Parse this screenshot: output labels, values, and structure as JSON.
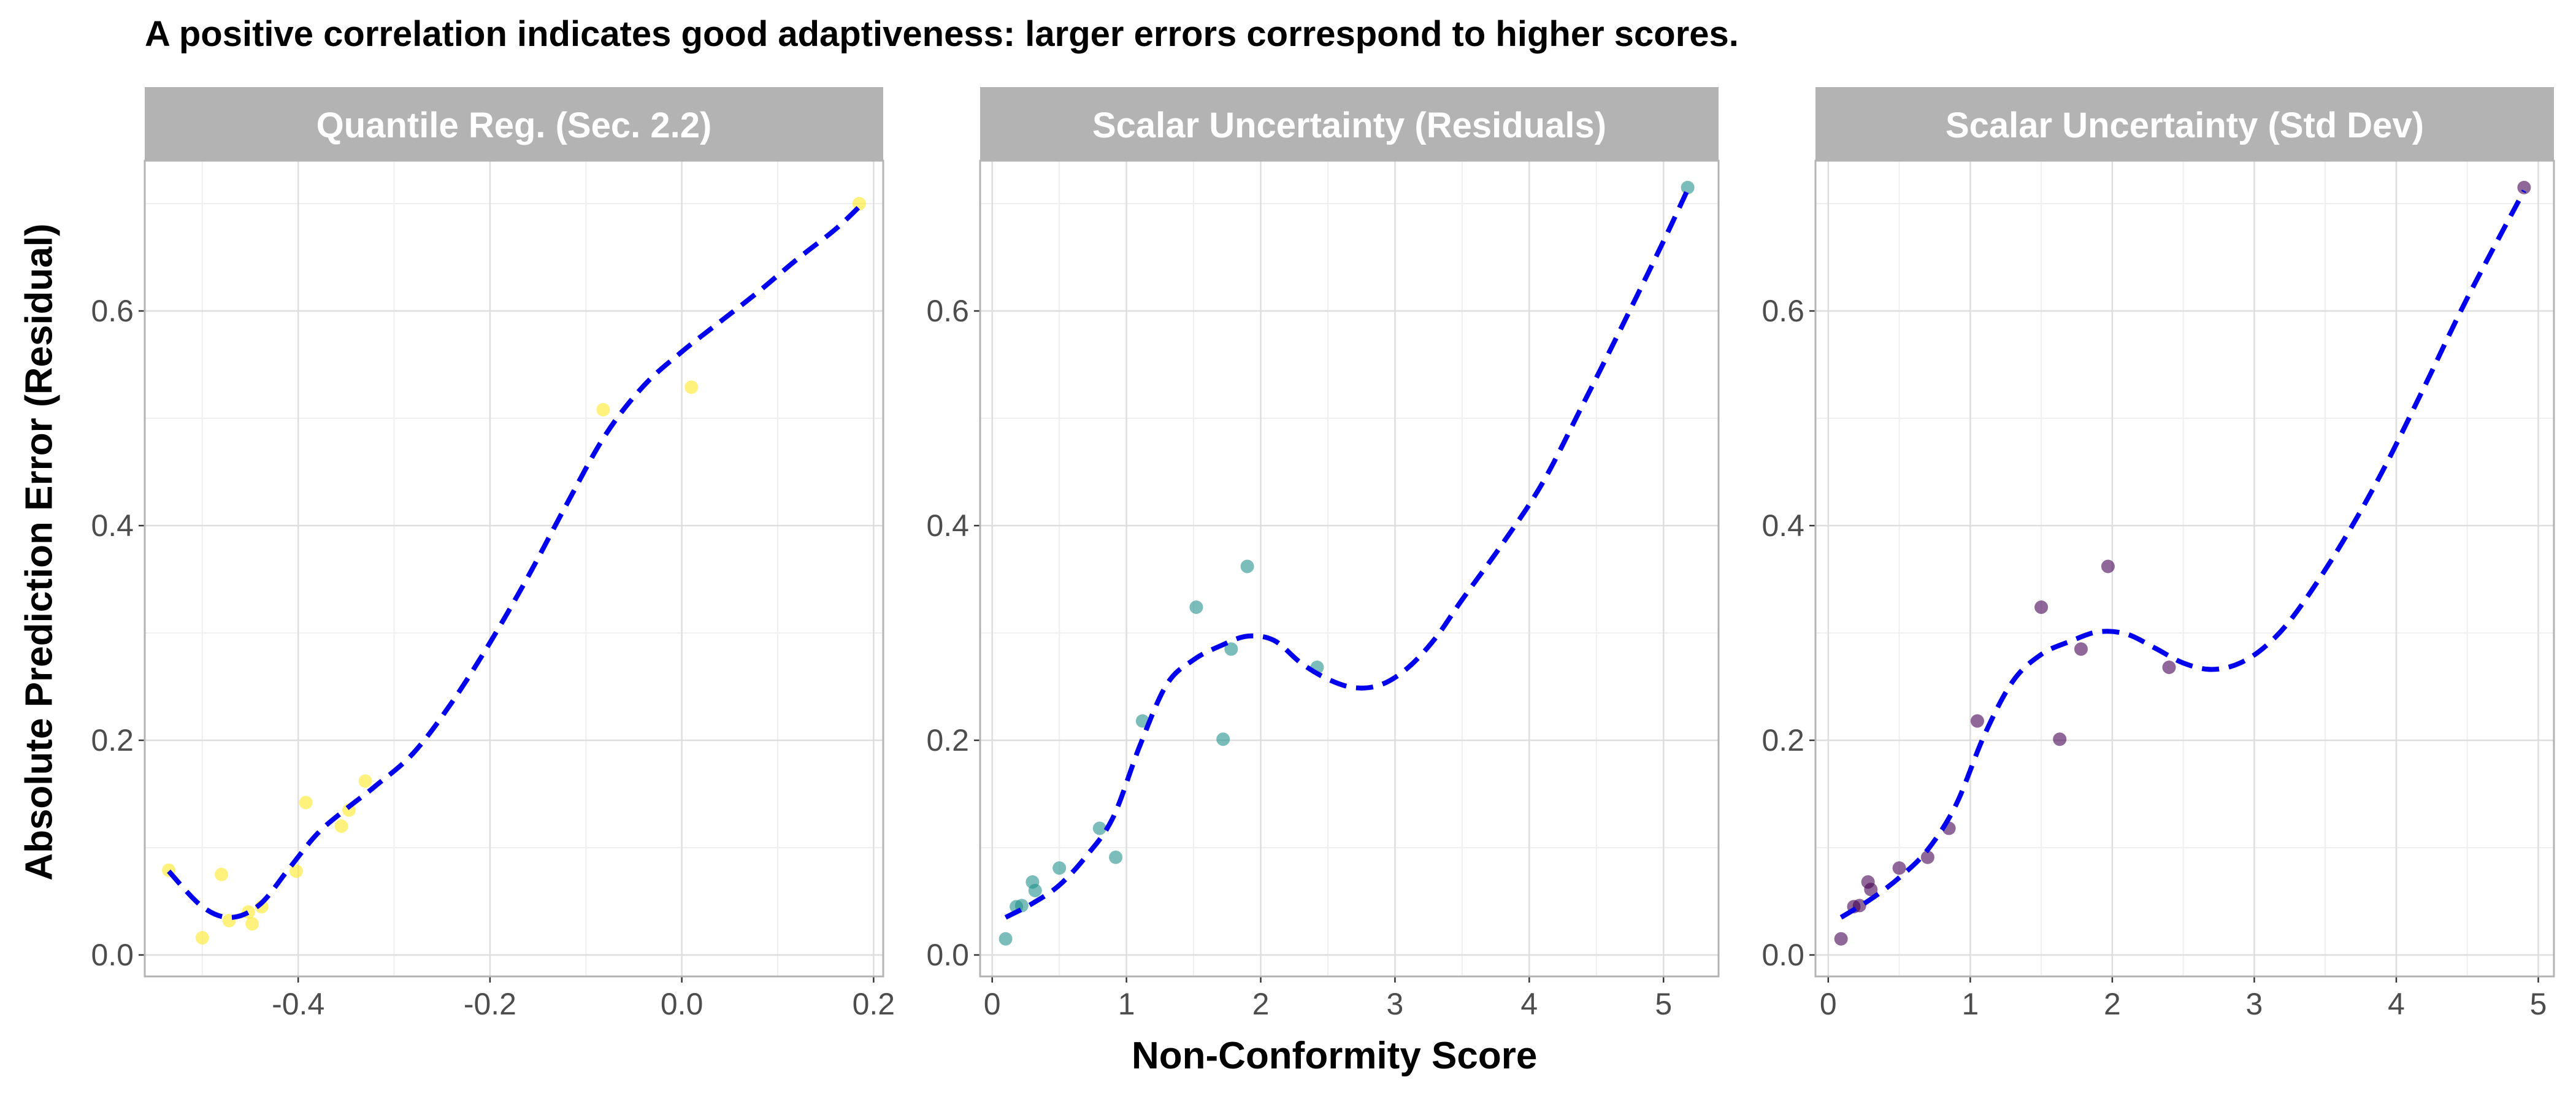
{
  "figure": {
    "title": "A positive correlation indicates good adaptiveness: larger errors correspond to higher scores.",
    "xlabel": "Non-Conformity Score",
    "ylabel": "Absolute Prediction Error (Residual)",
    "colors": {
      "strip_bg": "#b3b3b3",
      "strip_text": "#ffffff",
      "grid_major": "#dedede",
      "grid_minor": "#efefef",
      "panel_border": "#b3b3b3",
      "fit_line": "#0000ee",
      "tick_text": "#4d4d4d"
    }
  },
  "chart_data": [
    {
      "type": "scatter",
      "facet": "Quantile Reg. (Sec. 2.2)",
      "point_color": "#fde725",
      "xlim": [
        -0.56,
        0.21
      ],
      "ylim": [
        -0.02,
        0.74
      ],
      "x_ticks": [
        -0.4,
        -0.2,
        0.0,
        0.2
      ],
      "x_tick_labels": [
        "-0.4",
        "-0.2",
        "0.0",
        "0.2"
      ],
      "y_ticks": [
        0.0,
        0.2,
        0.4,
        0.6
      ],
      "y_tick_labels": [
        "0.0",
        "0.2",
        "0.4",
        "0.6"
      ],
      "points": [
        [
          -0.535,
          0.079
        ],
        [
          -0.5,
          0.016
        ],
        [
          -0.48,
          0.075
        ],
        [
          -0.472,
          0.032
        ],
        [
          -0.452,
          0.04
        ],
        [
          -0.448,
          0.029
        ],
        [
          -0.438,
          0.045
        ],
        [
          -0.402,
          0.078
        ],
        [
          -0.392,
          0.142
        ],
        [
          -0.355,
          0.12
        ],
        [
          -0.347,
          0.135
        ],
        [
          -0.33,
          0.162
        ],
        [
          -0.082,
          0.508
        ],
        [
          0.01,
          0.529
        ],
        [
          0.185,
          0.7
        ]
      ],
      "smooth": [
        [
          -0.535,
          0.078
        ],
        [
          -0.5,
          0.045
        ],
        [
          -0.47,
          0.035
        ],
        [
          -0.44,
          0.047
        ],
        [
          -0.41,
          0.08
        ],
        [
          -0.38,
          0.113
        ],
        [
          -0.35,
          0.136
        ],
        [
          -0.32,
          0.157
        ],
        [
          -0.28,
          0.188
        ],
        [
          -0.24,
          0.235
        ],
        [
          -0.2,
          0.291
        ],
        [
          -0.16,
          0.353
        ],
        [
          -0.12,
          0.42
        ],
        [
          -0.08,
          0.484
        ],
        [
          -0.04,
          0.53
        ],
        [
          0.0,
          0.562
        ],
        [
          0.04,
          0.59
        ],
        [
          0.08,
          0.618
        ],
        [
          0.12,
          0.648
        ],
        [
          0.16,
          0.676
        ],
        [
          0.185,
          0.697
        ]
      ]
    },
    {
      "type": "scatter",
      "facet": "Scalar Uncertainty (Residuals)",
      "point_color": "#21918c",
      "xlim": [
        -0.09,
        5.41
      ],
      "ylim": [
        -0.02,
        0.74
      ],
      "x_ticks": [
        0,
        1,
        2,
        3,
        4,
        5
      ],
      "x_tick_labels": [
        "0",
        "1",
        "2",
        "3",
        "4",
        "5"
      ],
      "y_ticks": [
        0.0,
        0.2,
        0.4,
        0.6
      ],
      "y_tick_labels": [
        "0.0",
        "0.2",
        "0.4",
        "0.6"
      ],
      "points": [
        [
          0.1,
          0.015
        ],
        [
          0.18,
          0.045
        ],
        [
          0.22,
          0.046
        ],
        [
          0.3,
          0.068
        ],
        [
          0.32,
          0.06
        ],
        [
          0.5,
          0.081
        ],
        [
          0.8,
          0.118
        ],
        [
          0.92,
          0.091
        ],
        [
          1.12,
          0.218
        ],
        [
          1.52,
          0.324
        ],
        [
          1.72,
          0.201
        ],
        [
          1.78,
          0.285
        ],
        [
          1.9,
          0.362
        ],
        [
          2.42,
          0.268
        ],
        [
          5.18,
          0.715
        ]
      ],
      "smooth": [
        [
          0.1,
          0.035
        ],
        [
          0.3,
          0.048
        ],
        [
          0.5,
          0.065
        ],
        [
          0.7,
          0.092
        ],
        [
          0.9,
          0.128
        ],
        [
          1.1,
          0.195
        ],
        [
          1.3,
          0.252
        ],
        [
          1.5,
          0.275
        ],
        [
          1.7,
          0.288
        ],
        [
          1.9,
          0.297
        ],
        [
          2.1,
          0.293
        ],
        [
          2.3,
          0.272
        ],
        [
          2.5,
          0.257
        ],
        [
          2.7,
          0.249
        ],
        [
          2.9,
          0.252
        ],
        [
          3.1,
          0.268
        ],
        [
          3.3,
          0.295
        ],
        [
          3.5,
          0.331
        ],
        [
          3.8,
          0.383
        ],
        [
          4.1,
          0.44
        ],
        [
          4.4,
          0.513
        ],
        [
          4.7,
          0.588
        ],
        [
          5.0,
          0.665
        ],
        [
          5.18,
          0.713
        ]
      ]
    },
    {
      "type": "scatter",
      "facet": "Scalar Uncertainty (Std Dev)",
      "point_color": "#440154",
      "xlim": [
        -0.09,
        5.11
      ],
      "ylim": [
        -0.02,
        0.74
      ],
      "x_ticks": [
        0,
        1,
        2,
        3,
        4,
        5
      ],
      "x_tick_labels": [
        "0",
        "1",
        "2",
        "3",
        "4",
        "5"
      ],
      "y_ticks": [
        0.0,
        0.2,
        0.4,
        0.6
      ],
      "y_tick_labels": [
        "0.0",
        "0.2",
        "0.4",
        "0.6"
      ],
      "points": [
        [
          0.09,
          0.015
        ],
        [
          0.18,
          0.045
        ],
        [
          0.22,
          0.046
        ],
        [
          0.28,
          0.068
        ],
        [
          0.3,
          0.061
        ],
        [
          0.5,
          0.081
        ],
        [
          0.7,
          0.091
        ],
        [
          0.85,
          0.118
        ],
        [
          1.05,
          0.218
        ],
        [
          1.5,
          0.324
        ],
        [
          1.63,
          0.201
        ],
        [
          1.78,
          0.285
        ],
        [
          1.97,
          0.362
        ],
        [
          2.4,
          0.268
        ],
        [
          4.9,
          0.715
        ]
      ],
      "smooth": [
        [
          0.09,
          0.035
        ],
        [
          0.3,
          0.052
        ],
        [
          0.5,
          0.072
        ],
        [
          0.7,
          0.098
        ],
        [
          0.9,
          0.14
        ],
        [
          1.1,
          0.205
        ],
        [
          1.3,
          0.255
        ],
        [
          1.5,
          0.28
        ],
        [
          1.7,
          0.292
        ],
        [
          1.9,
          0.301
        ],
        [
          2.1,
          0.299
        ],
        [
          2.3,
          0.286
        ],
        [
          2.5,
          0.272
        ],
        [
          2.7,
          0.266
        ],
        [
          2.9,
          0.272
        ],
        [
          3.1,
          0.29
        ],
        [
          3.3,
          0.32
        ],
        [
          3.6,
          0.38
        ],
        [
          3.9,
          0.45
        ],
        [
          4.2,
          0.53
        ],
        [
          4.5,
          0.612
        ],
        [
          4.9,
          0.712
        ]
      ]
    }
  ]
}
